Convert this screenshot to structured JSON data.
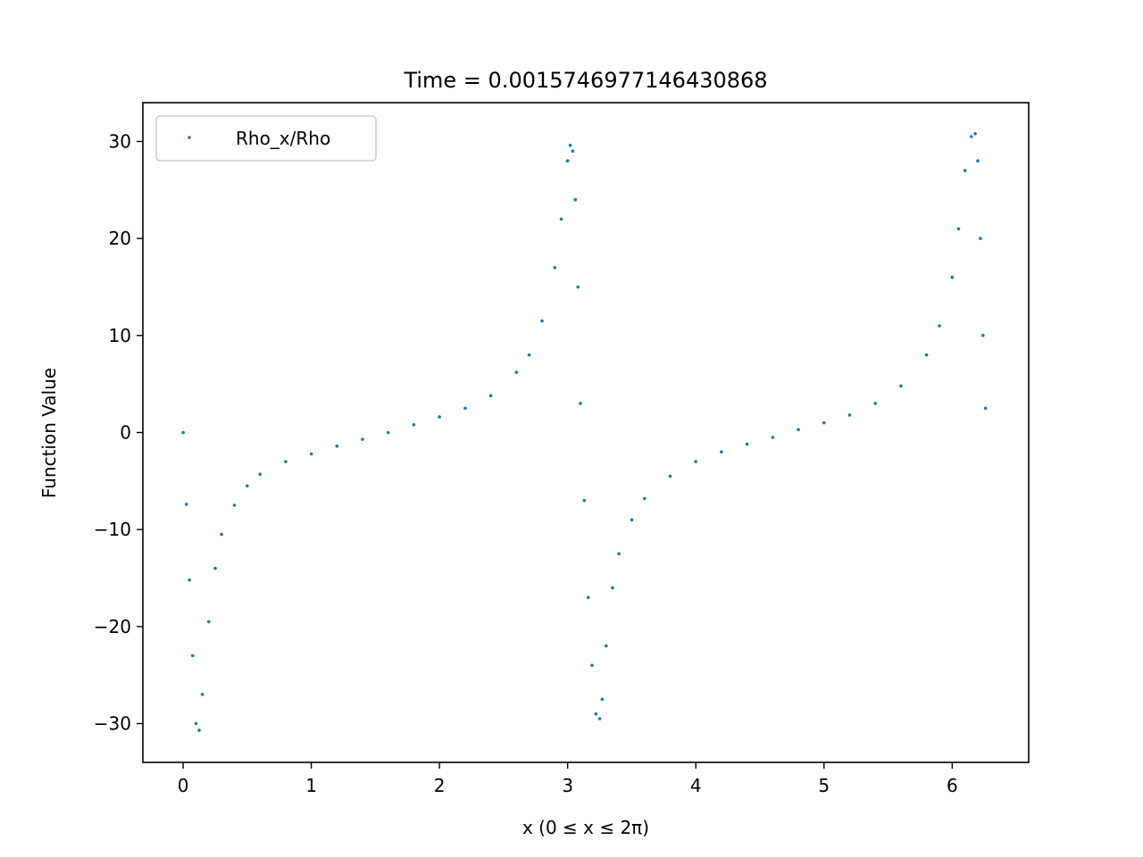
{
  "chart_data": {
    "type": "scatter",
    "title": "Time = 0.0015746977146430868",
    "xlabel": "x (0 ≤ x ≤ 2π)",
    "ylabel": "Function Value",
    "xlim": [
      -0.314,
      6.597
    ],
    "ylim": [
      -34.0,
      34.0
    ],
    "xticks": [
      0,
      1,
      2,
      3,
      4,
      5,
      6
    ],
    "xtick_labels": [
      "0",
      "1",
      "2",
      "3",
      "4",
      "5",
      "6"
    ],
    "yticks": [
      -30,
      -20,
      -10,
      0,
      10,
      20,
      30
    ],
    "ytick_labels": [
      "−30",
      "−20",
      "−10",
      "0",
      "10",
      "20",
      "30"
    ],
    "grid": false,
    "legend_position": "upper-left",
    "series": [
      {
        "name": "Rho_x/Rho",
        "color": "#1f77b4",
        "marker": "dot",
        "x": [
          0.0,
          0.025,
          0.05,
          0.075,
          0.1,
          0.125,
          0.15,
          0.2,
          0.25,
          0.3,
          0.4,
          0.5,
          0.6,
          0.8,
          1.0,
          1.2,
          1.4,
          1.6,
          1.8,
          2.0,
          2.2,
          2.4,
          2.6,
          2.7,
          2.8,
          2.9,
          2.95,
          3.0,
          3.02,
          3.04,
          3.06,
          3.08,
          3.1,
          3.13,
          3.16,
          3.19,
          3.22,
          3.25,
          3.27,
          3.3,
          3.35,
          3.4,
          3.5,
          3.6,
          3.8,
          4.0,
          4.2,
          4.4,
          4.6,
          4.8,
          5.0,
          5.2,
          5.4,
          5.6,
          5.8,
          5.9,
          6.0,
          6.05,
          6.1,
          6.15,
          6.18,
          6.2,
          6.22,
          6.24,
          6.26
        ],
        "y": [
          0.0,
          -7.4,
          -15.2,
          -23.0,
          -30.0,
          -30.7,
          -27.0,
          -19.5,
          -14.0,
          -10.5,
          -7.5,
          -5.5,
          -4.3,
          -3.0,
          -2.2,
          -1.4,
          -0.7,
          0.0,
          0.8,
          1.6,
          2.5,
          3.8,
          6.2,
          8.0,
          11.5,
          17.0,
          22.0,
          28.0,
          29.6,
          29.0,
          24.0,
          15.0,
          3.0,
          -7.0,
          -17.0,
          -24.0,
          -29.0,
          -29.5,
          -27.5,
          -22.0,
          -16.0,
          -12.5,
          -9.0,
          -6.8,
          -4.5,
          -3.0,
          -2.0,
          -1.2,
          -0.5,
          0.3,
          1.0,
          1.8,
          3.0,
          4.8,
          8.0,
          11.0,
          16.0,
          21.0,
          27.0,
          30.5,
          30.8,
          28.0,
          20.0,
          10.0,
          2.5
        ]
      }
    ]
  }
}
